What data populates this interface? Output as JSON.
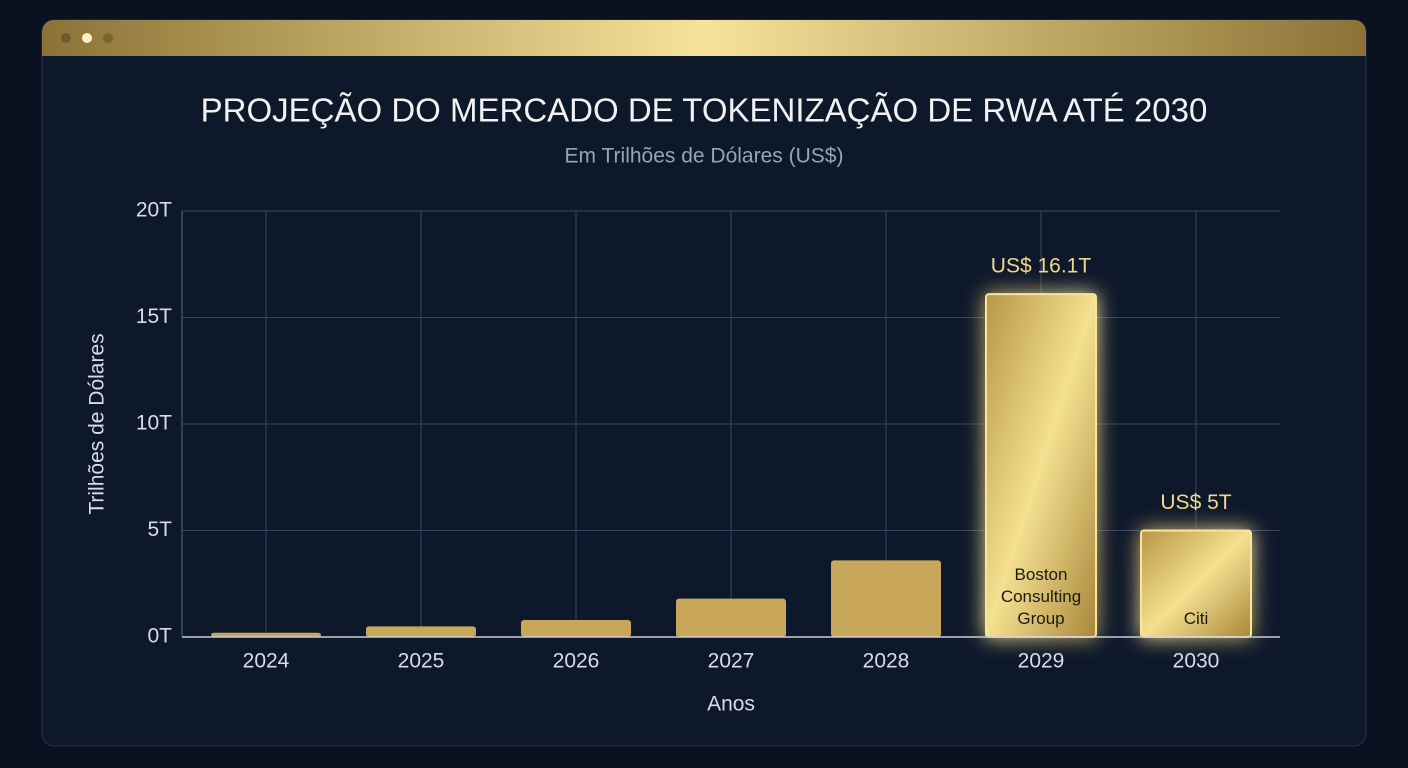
{
  "chart_data": {
    "type": "bar",
    "title": "PROJEÇÃO DO MERCADO DE TOKENIZAÇÃO DE RWA ATÉ 2030",
    "subtitle": "Em Trilhões de Dólares (US$)",
    "y_label": "Trilhões de Dólares",
    "x_label": "Anos",
    "categories": [
      "2024",
      "2025",
      "2026",
      "2027",
      "2028",
      "2029",
      "2030"
    ],
    "values": [
      0.2,
      0.5,
      0.8,
      1.8,
      3.6,
      16.1,
      5
    ],
    "value_labels": [
      null,
      null,
      null,
      null,
      null,
      "US$ 16.1T",
      "US$ 5T"
    ],
    "sources": [
      null,
      null,
      null,
      null,
      null,
      "Boston Consulting Group",
      "Citi"
    ],
    "color": "#c8a75a",
    "ylim": [
      0,
      20
    ],
    "yticks": [
      {
        "value": 0,
        "label": "0T"
      },
      {
        "value": 5,
        "label": "5T"
      },
      {
        "value": 10,
        "label": "10T"
      },
      {
        "value": 15,
        "label": "15T"
      },
      {
        "value": 20,
        "label": "20T"
      }
    ],
    "grid": true
  }
}
